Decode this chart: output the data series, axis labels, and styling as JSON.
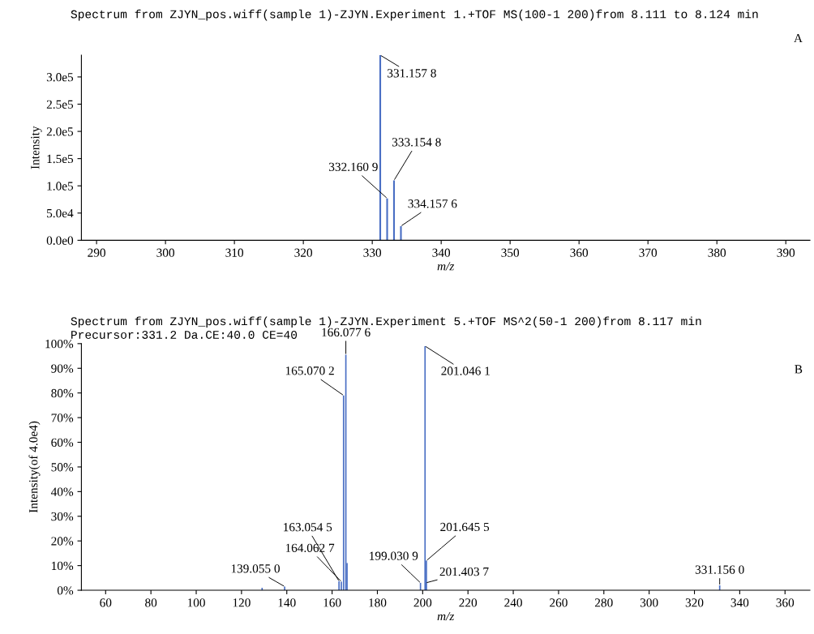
{
  "chart_data": [
    {
      "type": "bar",
      "title": "Spectrum from ZJYN_pos.wiff(sample 1)-ZJYN.Experiment 1.+TOF MS(100-1 200)from 8.111 to 8.124 min",
      "xlabel": "m/z",
      "ylabel": "Intensity",
      "x": [
        331.1578,
        332.1609,
        333.1548,
        334.1576
      ],
      "values": [
        340000,
        77000,
        110000,
        26000
      ],
      "color": "#4a6fc4",
      "xlim": [
        287.8,
        393.5
      ],
      "xticks": [
        290,
        300,
        310,
        320,
        330,
        340,
        350,
        360,
        370,
        380,
        390
      ],
      "ylim": [
        0,
        340000
      ],
      "yticks": [
        {
          "value": 0,
          "label": "0.0e0"
        },
        {
          "value": 50000,
          "label": "5.0e4"
        },
        {
          "value": 100000,
          "label": "1.0e5"
        },
        {
          "value": 150000,
          "label": "1.5e5"
        },
        {
          "value": 200000,
          "label": "2.0e5"
        },
        {
          "value": 250000,
          "label": "2.5e5"
        },
        {
          "value": 300000,
          "label": "3.0e5"
        }
      ],
      "grid": false,
      "annotations": [
        "A",
        {
          "text": "331.157 8",
          "x": 331.1578,
          "y": 340000
        },
        {
          "text": "332.160 9",
          "x": 332.1609,
          "y": 77000
        },
        {
          "text": "333.154 8",
          "x": 333.1548,
          "y": 110000
        },
        {
          "text": "334.157 6",
          "x": 334.1576,
          "y": 26000
        }
      ]
    },
    {
      "type": "bar",
      "title": "Spectrum from ZJYN_pos.wiff(sample 1)-ZJYN.Experiment 5.+TOF MS^2(50-1 200)from 8.117 min",
      "subtitle": "Precursor:331.2 Da.CE:40.0 CE=40",
      "xlabel": "m/z",
      "ylabel": "Intensity(of 4.0e4)",
      "x": [
        129.1,
        139.055,
        163.0545,
        164.0627,
        165.0702,
        166.0776,
        166.6,
        199.0309,
        201.0461,
        201.4037,
        201.6455,
        331.156
      ],
      "values": [
        1.0,
        1.5,
        3.7,
        3.5,
        79,
        95.5,
        11,
        3,
        99,
        3,
        12,
        2
      ],
      "color": "#4a6fc4",
      "xlim": [
        49.3,
        371
      ],
      "xticks": [
        60,
        80,
        100,
        120,
        140,
        160,
        180,
        200,
        220,
        240,
        260,
        280,
        300,
        320,
        340,
        360
      ],
      "ylim": [
        0,
        100
      ],
      "yticks": [
        {
          "value": 0,
          "label": "0%"
        },
        {
          "value": 10,
          "label": "10%"
        },
        {
          "value": 20,
          "label": "20%"
        },
        {
          "value": 30,
          "label": "30%"
        },
        {
          "value": 40,
          "label": "40%"
        },
        {
          "value": 50,
          "label": "50%"
        },
        {
          "value": 60,
          "label": "60%"
        },
        {
          "value": 70,
          "label": "70%"
        },
        {
          "value": 80,
          "label": "80%"
        },
        {
          "value": 90,
          "label": "90%"
        },
        {
          "value": 100,
          "label": "100%"
        }
      ],
      "grid": false,
      "annotations": [
        "B",
        {
          "text": "139.055 0",
          "x": 139.055,
          "y": 1.5
        },
        {
          "text": "163.054 5",
          "x": 163.0545,
          "y": 3.7
        },
        {
          "text": "164.062 7",
          "x": 164.0627,
          "y": 3.5
        },
        {
          "text": "165.070 2",
          "x": 165.0702,
          "y": 79
        },
        {
          "text": "166.077 6",
          "x": 166.0776,
          "y": 95.5
        },
        {
          "text": "199.030 9",
          "x": 199.0309,
          "y": 3
        },
        {
          "text": "201.046 1",
          "x": 201.0461,
          "y": 99
        },
        {
          "text": "201.403 7",
          "x": 201.4037,
          "y": 3
        },
        {
          "text": "201.645 5",
          "x": 201.6455,
          "y": 12
        },
        {
          "text": "331.156 0",
          "x": 331.156,
          "y": 2
        }
      ]
    }
  ]
}
